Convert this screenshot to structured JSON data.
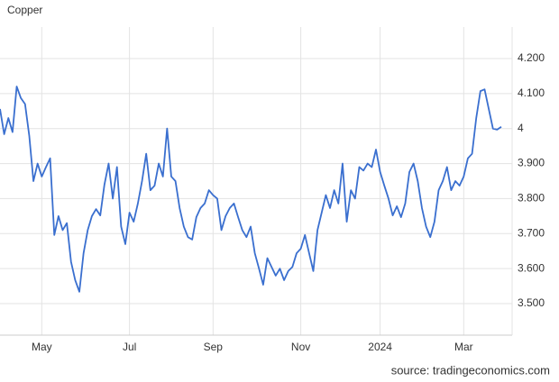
{
  "chart_data": {
    "type": "line",
    "title": "Copper",
    "source": "source: tradingeconomics.com",
    "categories": [
      null,
      null,
      null,
      null,
      null,
      null,
      null,
      null,
      null,
      null,
      "May",
      null,
      null,
      null,
      null,
      null,
      null,
      null,
      null,
      null,
      null,
      null,
      null,
      null,
      null,
      null,
      null,
      null,
      null,
      null,
      null,
      "Jul",
      null,
      null,
      null,
      null,
      null,
      null,
      null,
      null,
      null,
      null,
      null,
      null,
      null,
      null,
      null,
      null,
      null,
      null,
      null,
      "Sep",
      null,
      null,
      null,
      null,
      null,
      null,
      null,
      null,
      null,
      null,
      null,
      null,
      null,
      null,
      null,
      null,
      null,
      null,
      null,
      null,
      "Nov",
      null,
      null,
      null,
      null,
      null,
      null,
      null,
      null,
      null,
      null,
      null,
      null,
      null,
      null,
      null,
      null,
      null,
      null,
      "2024",
      null,
      null,
      null,
      null,
      null,
      null,
      null,
      null,
      null,
      null,
      null,
      null,
      null,
      null,
      null,
      null,
      null,
      null,
      null,
      "Mar",
      null,
      null,
      null,
      null,
      null,
      null,
      null,
      null,
      null
    ],
    "series": [
      {
        "name": "Copper",
        "color": "#3a6fcf",
        "values": [
          4.056,
          3.984,
          4.03,
          3.99,
          4.12,
          4.087,
          4.07,
          3.98,
          3.85,
          3.9,
          3.863,
          3.89,
          3.915,
          3.696,
          3.75,
          3.71,
          3.73,
          3.62,
          3.567,
          3.534,
          3.644,
          3.71,
          3.75,
          3.77,
          3.752,
          3.84,
          3.9,
          3.8,
          3.89,
          3.72,
          3.67,
          3.76,
          3.734,
          3.786,
          3.85,
          3.928,
          3.824,
          3.837,
          3.9,
          3.863,
          4.0,
          3.863,
          3.85,
          3.773,
          3.72,
          3.69,
          3.683,
          3.747,
          3.773,
          3.786,
          3.824,
          3.81,
          3.8,
          3.71,
          3.75,
          3.773,
          3.786,
          3.747,
          3.71,
          3.69,
          3.72,
          3.644,
          3.6,
          3.554,
          3.63,
          3.605,
          3.58,
          3.6,
          3.567,
          3.593,
          3.605,
          3.644,
          3.657,
          3.696,
          3.644,
          3.593,
          3.71,
          3.76,
          3.81,
          3.773,
          3.824,
          3.786,
          3.9,
          3.734,
          3.824,
          3.8,
          3.89,
          3.88,
          3.9,
          3.89,
          3.94,
          3.876,
          3.837,
          3.8,
          3.752,
          3.778,
          3.747,
          3.786,
          3.876,
          3.9,
          3.85,
          3.773,
          3.72,
          3.69,
          3.734,
          3.824,
          3.85,
          3.89,
          3.824,
          3.85,
          3.837,
          3.863,
          3.915,
          3.928,
          4.03,
          4.107,
          4.112,
          4.056,
          4.0,
          3.997,
          4.005
        ]
      }
    ],
    "ylim": [
      3.41,
      4.29
    ],
    "yticks": [
      {
        "value": 3.5,
        "label": "3.500"
      },
      {
        "value": 3.6,
        "label": "3.600"
      },
      {
        "value": 3.7,
        "label": "3.700"
      },
      {
        "value": 3.8,
        "label": "3.800"
      },
      {
        "value": 3.9,
        "label": "3.900"
      },
      4,
      {
        "value": 4.1,
        "label": "4.100"
      },
      {
        "value": 4.2,
        "label": "4.200"
      }
    ],
    "grid": true
  }
}
